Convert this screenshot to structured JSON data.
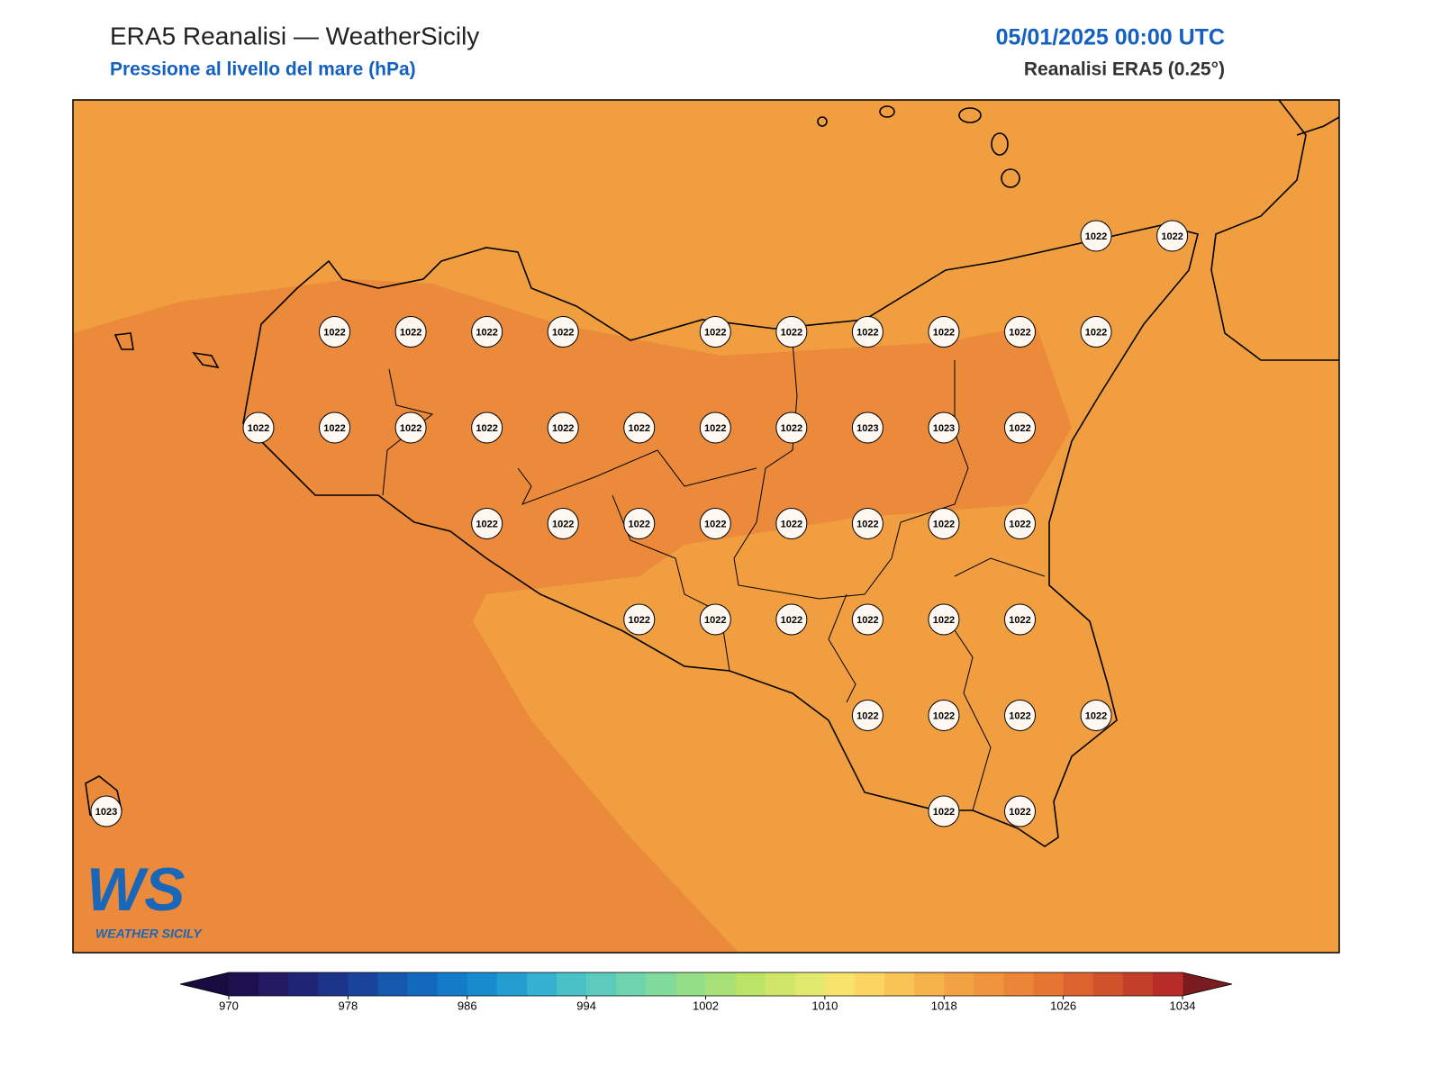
{
  "header": {
    "title": "ERA5 Reanalisi — WeatherSicily",
    "subtitle": "Pressione al livello del mare (hPa)",
    "datetime": "05/01/2025 00:00 UTC",
    "source": "Reanalisi ERA5 (0.25°)"
  },
  "map": {
    "labels": [
      "1022",
      "1022",
      "1022",
      "1022",
      "1022",
      "1022",
      "1022",
      "1022",
      "1022",
      "1022",
      "1022",
      "1022",
      "1022",
      "1022",
      "1022",
      "1022",
      "1022",
      "1022",
      "1022",
      "1022",
      "1023",
      "1023",
      "1022",
      "1022",
      "1022",
      "1022",
      "1022",
      "1022",
      "1022",
      "1022",
      "1022",
      "1022",
      "1022",
      "1022",
      "1022",
      "1022",
      "1022",
      "1022",
      "1022",
      "1022",
      "1022",
      "1023",
      "1022",
      "1022"
    ]
  },
  "colorbar": {
    "ticks": [
      970,
      978,
      986,
      994,
      1002,
      1010,
      1018,
      1026,
      1034
    ],
    "colors": [
      "#1e0f4f",
      "#221a63",
      "#1f2574",
      "#1c338a",
      "#1a449c",
      "#1559ae",
      "#1269be",
      "#137bc8",
      "#188bcf",
      "#239ccf",
      "#34b0d0",
      "#4ac0c7",
      "#5ccbbd",
      "#6dd4ad",
      "#80da9c",
      "#94de88",
      "#a7e074",
      "#bbe366",
      "#cfe66a",
      "#e1e86e",
      "#f5e36c",
      "#fbd461",
      "#f9c455",
      "#f5b24b",
      "#f2a243",
      "#f0943e",
      "#ec8537",
      "#e57531",
      "#db632d",
      "#d0522b",
      "#c43f29",
      "#b82c28"
    ],
    "under": "#180b40",
    "over": "#7a1b1f"
  },
  "logo": {
    "mark": "WS",
    "text": "WEATHER SICILY"
  }
}
